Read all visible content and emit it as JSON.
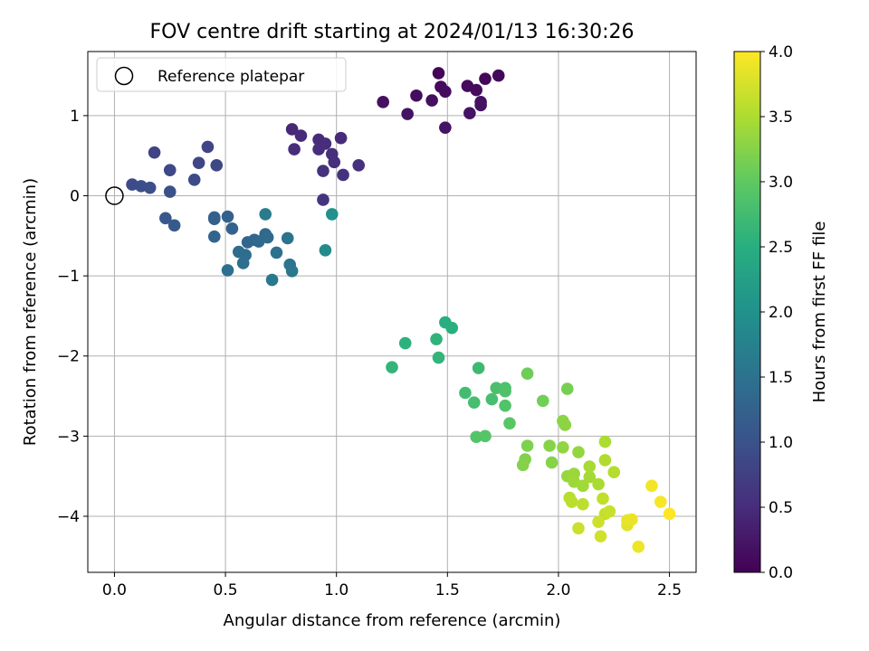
{
  "chart_data": {
    "type": "scatter",
    "title": "FOV centre drift starting at 2024/01/13 16:30:26",
    "xlabel": "Angular distance from reference (arcmin)",
    "ylabel": "Rotation from reference (arcmin)",
    "xlim": [
      -0.12,
      2.62
    ],
    "ylim": [
      -4.7,
      1.8
    ],
    "xticks": [
      0.0,
      0.5,
      1.0,
      1.5,
      2.0,
      2.5
    ],
    "xtick_labels": [
      "0.0",
      "0.5",
      "1.0",
      "1.5",
      "2.0",
      "2.5"
    ],
    "yticks": [
      -4,
      -3,
      -2,
      -1,
      0,
      1
    ],
    "ytick_labels": [
      "−4",
      "−3",
      "−2",
      "−1",
      "0",
      "1"
    ],
    "grid": true,
    "legend": {
      "placement": "top-left",
      "entries": [
        "Reference platepar"
      ]
    },
    "reference_point": {
      "x": 0.0,
      "y": 0.0
    },
    "colorbar": {
      "label": "Hours from first FF file",
      "colormap": "viridis",
      "range": [
        0.0,
        4.0
      ],
      "ticks": [
        0.0,
        0.5,
        1.0,
        1.5,
        2.0,
        2.5,
        3.0,
        3.5,
        4.0
      ],
      "tick_labels": [
        "0.0",
        "0.5",
        "1.0",
        "1.5",
        "2.0",
        "2.5",
        "3.0",
        "3.5",
        "4.0"
      ]
    },
    "points": [
      {
        "x": 1.46,
        "y": 1.53,
        "c": 0.05
      },
      {
        "x": 1.73,
        "y": 1.5,
        "c": 0.07
      },
      {
        "x": 1.67,
        "y": 1.46,
        "c": 0.08
      },
      {
        "x": 1.47,
        "y": 1.36,
        "c": 0.1
      },
      {
        "x": 1.59,
        "y": 1.37,
        "c": 0.11
      },
      {
        "x": 1.63,
        "y": 1.32,
        "c": 0.12
      },
      {
        "x": 1.49,
        "y": 1.3,
        "c": 0.13
      },
      {
        "x": 1.36,
        "y": 1.25,
        "c": 0.14
      },
      {
        "x": 1.43,
        "y": 1.19,
        "c": 0.16
      },
      {
        "x": 1.21,
        "y": 1.17,
        "c": 0.17
      },
      {
        "x": 1.65,
        "y": 1.17,
        "c": 0.18
      },
      {
        "x": 1.65,
        "y": 1.13,
        "c": 0.19
      },
      {
        "x": 1.32,
        "y": 1.02,
        "c": 0.2
      },
      {
        "x": 1.6,
        "y": 1.03,
        "c": 0.21
      },
      {
        "x": 1.49,
        "y": 0.85,
        "c": 0.22
      },
      {
        "x": 0.8,
        "y": 0.83,
        "c": 0.45
      },
      {
        "x": 0.84,
        "y": 0.75,
        "c": 0.47
      },
      {
        "x": 1.02,
        "y": 0.72,
        "c": 0.48
      },
      {
        "x": 0.92,
        "y": 0.7,
        "c": 0.49
      },
      {
        "x": 0.95,
        "y": 0.65,
        "c": 0.5
      },
      {
        "x": 0.81,
        "y": 0.58,
        "c": 0.51
      },
      {
        "x": 0.92,
        "y": 0.58,
        "c": 0.52
      },
      {
        "x": 0.98,
        "y": 0.52,
        "c": 0.53
      },
      {
        "x": 0.99,
        "y": 0.42,
        "c": 0.54
      },
      {
        "x": 1.1,
        "y": 0.38,
        "c": 0.55
      },
      {
        "x": 0.94,
        "y": 0.31,
        "c": 0.56
      },
      {
        "x": 1.03,
        "y": 0.26,
        "c": 0.57
      },
      {
        "x": 0.94,
        "y": -0.05,
        "c": 0.6
      },
      {
        "x": 0.18,
        "y": 0.54,
        "c": 0.8
      },
      {
        "x": 0.42,
        "y": 0.61,
        "c": 0.82
      },
      {
        "x": 0.38,
        "y": 0.41,
        "c": 0.84
      },
      {
        "x": 0.46,
        "y": 0.38,
        "c": 0.86
      },
      {
        "x": 0.25,
        "y": 0.32,
        "c": 0.88
      },
      {
        "x": 0.36,
        "y": 0.2,
        "c": 0.9
      },
      {
        "x": 0.08,
        "y": 0.14,
        "c": 0.92
      },
      {
        "x": 0.12,
        "y": 0.12,
        "c": 0.94
      },
      {
        "x": 0.16,
        "y": 0.1,
        "c": 0.96
      },
      {
        "x": 0.25,
        "y": 0.05,
        "c": 0.98
      },
      {
        "x": 0.23,
        "y": -0.28,
        "c": 1.1
      },
      {
        "x": 0.27,
        "y": -0.37,
        "c": 1.12
      },
      {
        "x": 0.45,
        "y": -0.27,
        "c": 1.2
      },
      {
        "x": 0.45,
        "y": -0.29,
        "c": 1.22
      },
      {
        "x": 0.51,
        "y": -0.26,
        "c": 1.24
      },
      {
        "x": 0.53,
        "y": -0.41,
        "c": 1.26
      },
      {
        "x": 0.45,
        "y": -0.51,
        "c": 1.28
      },
      {
        "x": 0.6,
        "y": -0.58,
        "c": 1.3
      },
      {
        "x": 0.63,
        "y": -0.55,
        "c": 1.32
      },
      {
        "x": 0.65,
        "y": -0.57,
        "c": 1.34
      },
      {
        "x": 0.68,
        "y": -0.48,
        "c": 1.36
      },
      {
        "x": 0.69,
        "y": -0.52,
        "c": 1.38
      },
      {
        "x": 0.56,
        "y": -0.7,
        "c": 1.4
      },
      {
        "x": 0.59,
        "y": -0.74,
        "c": 1.42
      },
      {
        "x": 0.58,
        "y": -0.84,
        "c": 1.44
      },
      {
        "x": 0.51,
        "y": -0.93,
        "c": 1.46
      },
      {
        "x": 0.73,
        "y": -0.71,
        "c": 1.5
      },
      {
        "x": 0.78,
        "y": -0.53,
        "c": 1.52
      },
      {
        "x": 0.79,
        "y": -0.86,
        "c": 1.55
      },
      {
        "x": 0.8,
        "y": -0.94,
        "c": 1.58
      },
      {
        "x": 0.71,
        "y": -1.05,
        "c": 1.6
      },
      {
        "x": 0.68,
        "y": -0.23,
        "c": 1.65
      },
      {
        "x": 0.95,
        "y": -0.68,
        "c": 1.9
      },
      {
        "x": 0.98,
        "y": -0.23,
        "c": 2.0
      },
      {
        "x": 1.49,
        "y": -1.58,
        "c": 2.5
      },
      {
        "x": 1.52,
        "y": -1.65,
        "c": 2.52
      },
      {
        "x": 1.31,
        "y": -1.84,
        "c": 2.55
      },
      {
        "x": 1.45,
        "y": -1.79,
        "c": 2.58
      },
      {
        "x": 1.46,
        "y": -2.02,
        "c": 2.6
      },
      {
        "x": 1.25,
        "y": -2.14,
        "c": 2.62
      },
      {
        "x": 1.64,
        "y": -2.15,
        "c": 2.7
      },
      {
        "x": 1.58,
        "y": -2.46,
        "c": 2.75
      },
      {
        "x": 1.62,
        "y": -2.58,
        "c": 2.78
      },
      {
        "x": 1.7,
        "y": -2.54,
        "c": 2.8
      },
      {
        "x": 1.72,
        "y": -2.4,
        "c": 2.82
      },
      {
        "x": 1.76,
        "y": -2.4,
        "c": 2.84
      },
      {
        "x": 1.76,
        "y": -2.44,
        "c": 2.86
      },
      {
        "x": 1.76,
        "y": -2.62,
        "c": 2.88
      },
      {
        "x": 1.63,
        "y": -3.01,
        "c": 2.9
      },
      {
        "x": 1.67,
        "y": -3.0,
        "c": 2.92
      },
      {
        "x": 1.78,
        "y": -2.84,
        "c": 2.95
      },
      {
        "x": 1.86,
        "y": -2.22,
        "c": 3.1
      },
      {
        "x": 1.93,
        "y": -2.56,
        "c": 3.12
      },
      {
        "x": 2.04,
        "y": -2.41,
        "c": 3.15
      },
      {
        "x": 1.86,
        "y": -3.12,
        "c": 3.2
      },
      {
        "x": 1.85,
        "y": -3.29,
        "c": 3.22
      },
      {
        "x": 1.84,
        "y": -3.36,
        "c": 3.24
      },
      {
        "x": 1.96,
        "y": -3.12,
        "c": 3.25
      },
      {
        "x": 1.97,
        "y": -3.33,
        "c": 3.26
      },
      {
        "x": 2.02,
        "y": -2.81,
        "c": 3.28
      },
      {
        "x": 2.03,
        "y": -2.86,
        "c": 3.3
      },
      {
        "x": 2.02,
        "y": -3.14,
        "c": 3.32
      },
      {
        "x": 2.09,
        "y": -3.2,
        "c": 3.34
      },
      {
        "x": 2.04,
        "y": -3.5,
        "c": 3.36
      },
      {
        "x": 2.07,
        "y": -3.47,
        "c": 3.38
      },
      {
        "x": 2.07,
        "y": -3.57,
        "c": 3.4
      },
      {
        "x": 2.11,
        "y": -3.62,
        "c": 3.42
      },
      {
        "x": 2.14,
        "y": -3.51,
        "c": 3.44
      },
      {
        "x": 2.14,
        "y": -3.38,
        "c": 3.46
      },
      {
        "x": 2.18,
        "y": -3.6,
        "c": 3.48
      },
      {
        "x": 2.21,
        "y": -3.07,
        "c": 3.5
      },
      {
        "x": 2.21,
        "y": -3.3,
        "c": 3.52
      },
      {
        "x": 2.25,
        "y": -3.45,
        "c": 3.54
      },
      {
        "x": 2.05,
        "y": -3.77,
        "c": 3.56
      },
      {
        "x": 2.06,
        "y": -3.82,
        "c": 3.58
      },
      {
        "x": 2.11,
        "y": -3.85,
        "c": 3.6
      },
      {
        "x": 2.2,
        "y": -3.78,
        "c": 3.62
      },
      {
        "x": 2.21,
        "y": -3.97,
        "c": 3.64
      },
      {
        "x": 2.23,
        "y": -3.94,
        "c": 3.66
      },
      {
        "x": 2.09,
        "y": -4.15,
        "c": 3.68
      },
      {
        "x": 2.18,
        "y": -4.07,
        "c": 3.7
      },
      {
        "x": 2.19,
        "y": -4.25,
        "c": 3.72
      },
      {
        "x": 2.31,
        "y": -4.11,
        "c": 3.82
      },
      {
        "x": 2.31,
        "y": -4.05,
        "c": 3.85
      },
      {
        "x": 2.33,
        "y": -4.04,
        "c": 3.88
      },
      {
        "x": 2.36,
        "y": -4.38,
        "c": 3.9
      },
      {
        "x": 2.42,
        "y": -3.62,
        "c": 3.93
      },
      {
        "x": 2.46,
        "y": -3.82,
        "c": 3.96
      },
      {
        "x": 2.5,
        "y": -3.97,
        "c": 4.0
      }
    ]
  }
}
